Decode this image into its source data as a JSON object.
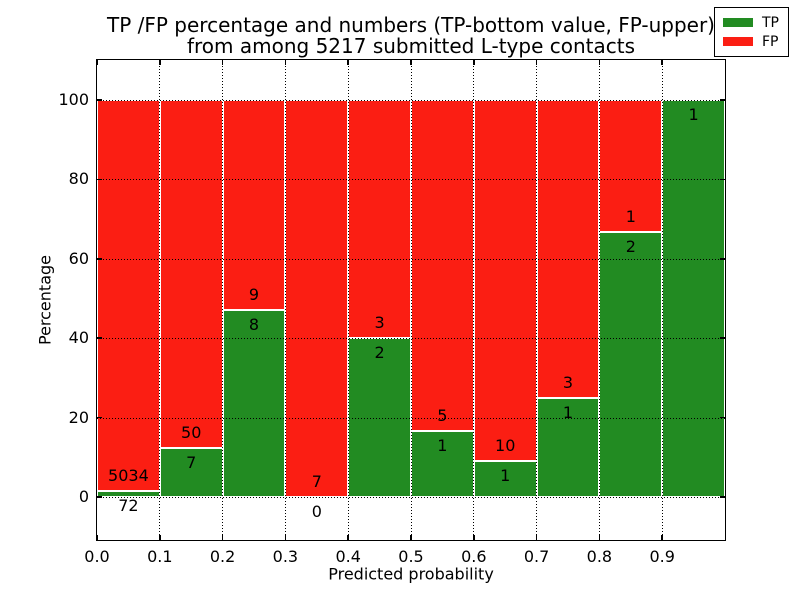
{
  "figure": {
    "title_line1": "TP /FP percentage and numbers (TP-bottom value, FP-upper)",
    "title_line2": "from among 5217 submitted L-type contacts",
    "background": "#ffffff"
  },
  "axes": {
    "xlabel": "Predicted probability",
    "ylabel": "Percentage",
    "xticks": [
      "0.0",
      "0.1",
      "0.2",
      "0.3",
      "0.4",
      "0.5",
      "0.6",
      "0.7",
      "0.8",
      "0.9"
    ],
    "yticks": [
      "0",
      "20",
      "40",
      "60",
      "80",
      "100"
    ],
    "xlim": [
      0.0,
      1.0
    ],
    "ylim": [
      -11,
      110
    ],
    "grid_style": "dotted",
    "grid_above_bars": true
  },
  "legend": {
    "position": "upper-right",
    "entries": [
      {
        "label": "TP",
        "color": "#228b22"
      },
      {
        "label": "FP",
        "color": "#fb1e13"
      }
    ]
  },
  "chart_data": {
    "type": "bar",
    "stacked": true,
    "normalized_to_100_percent": true,
    "bar_width": 0.1,
    "bin_left_edges": [
      0.0,
      0.1,
      0.2,
      0.3,
      0.4,
      0.5,
      0.6,
      0.7,
      0.8,
      0.9
    ],
    "series": [
      {
        "name": "TP",
        "color": "#228b22",
        "counts": [
          72,
          7,
          8,
          0,
          2,
          1,
          1,
          1,
          2,
          1
        ],
        "percent": [
          1.41,
          12.28,
          47.06,
          0,
          40,
          16.67,
          9.09,
          25,
          66.67,
          100
        ]
      },
      {
        "name": "FP",
        "color": "#fb1e13",
        "counts": [
          5034,
          50,
          9,
          7,
          3,
          5,
          10,
          3,
          1,
          0
        ],
        "percent": [
          98.59,
          87.72,
          52.94,
          100,
          60,
          83.33,
          90.91,
          75,
          33.33,
          0
        ]
      }
    ],
    "bar_value_labels": {
      "tp": [
        "72",
        "7",
        "8",
        "0",
        "2",
        "1",
        "1",
        "1",
        "2",
        "1"
      ],
      "fp": [
        "5034",
        "50",
        "9",
        "7",
        "3",
        "5",
        "10",
        "3",
        "1",
        ""
      ]
    },
    "total_submitted": 5217
  }
}
